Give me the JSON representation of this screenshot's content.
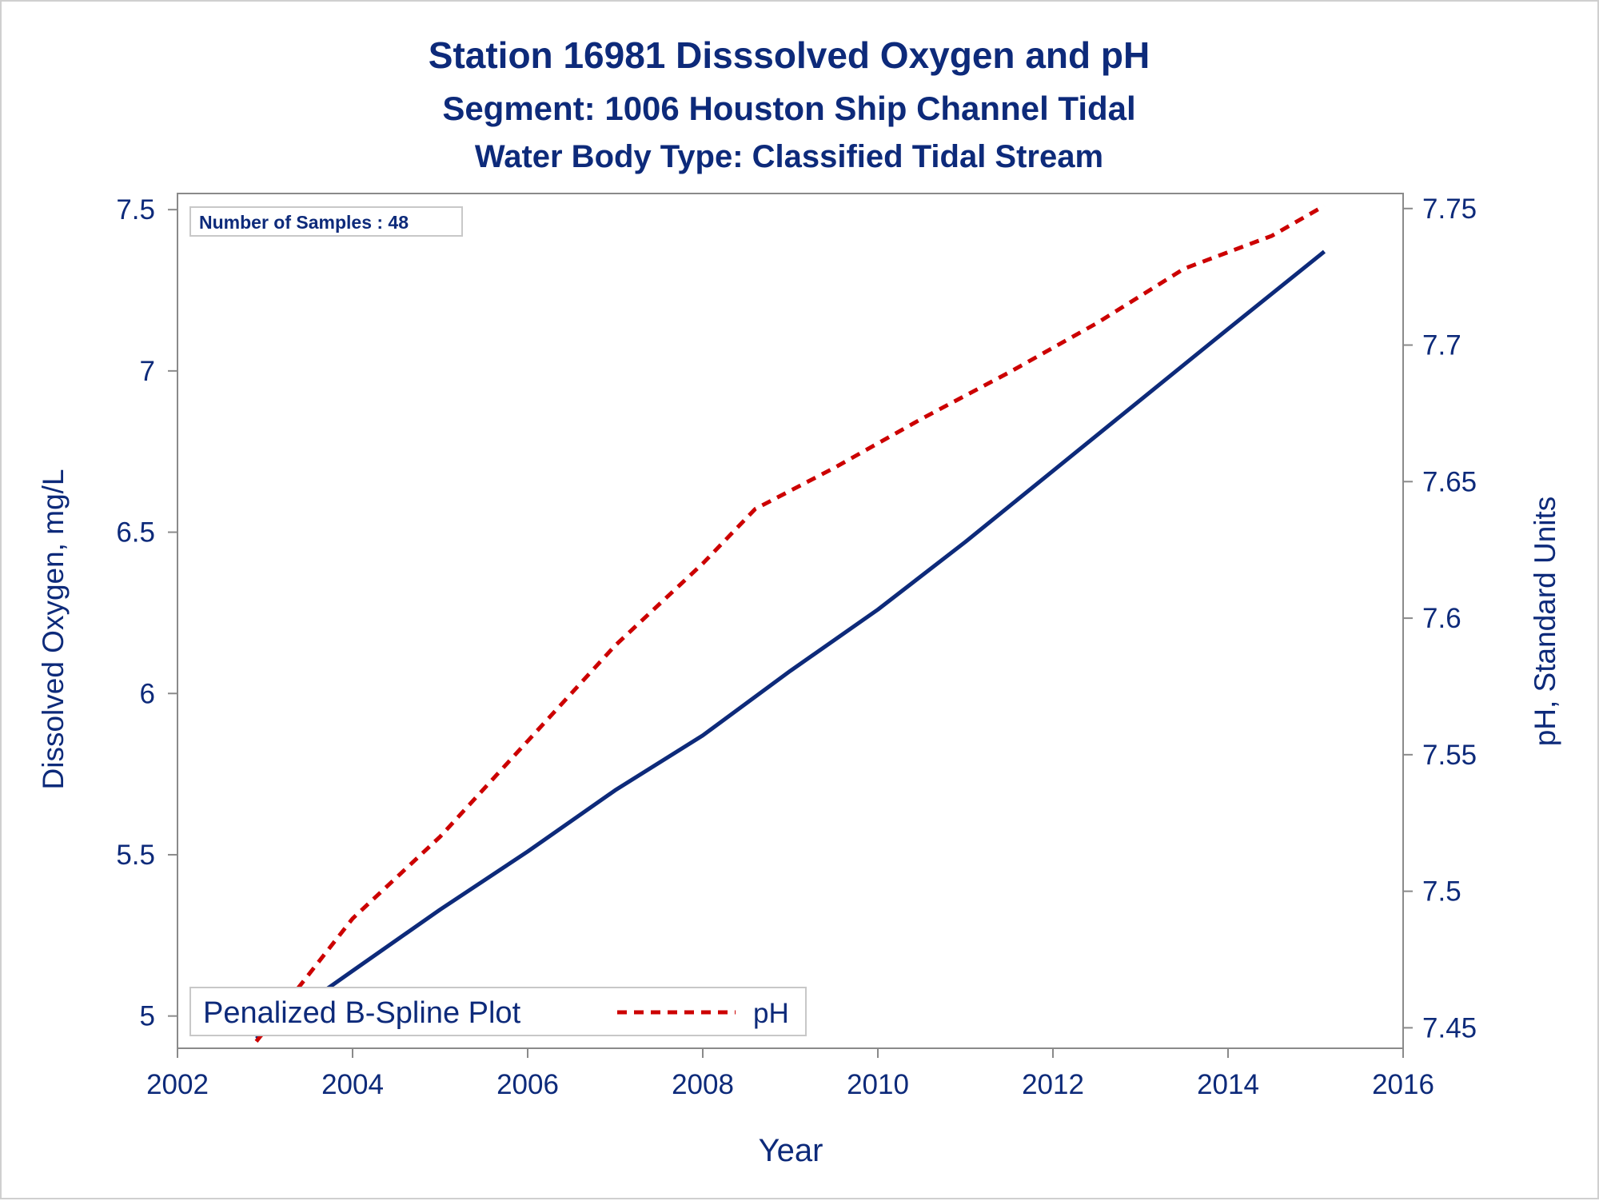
{
  "titles": {
    "line1": "Station 16981   Disssolved Oxygen and pH",
    "line2": "Segment: 1006  Houston Ship Channel Tidal",
    "line3": "Water Body Type: Classified Tidal Stream"
  },
  "inset": {
    "samples": "Number of Samples : 48"
  },
  "legend": {
    "title": "Penalized B-Spline Plot",
    "entry": "pH"
  },
  "colors": {
    "do_line": "#0d2a7a",
    "ph_line": "#cc0000",
    "text": "#0d2a7a"
  },
  "chart_data": {
    "type": "line",
    "xlabel": "Year",
    "ylabel": "Dissolved Oxygen, mg/L",
    "y2label": "pH, Standard Units",
    "xlim": [
      2002,
      2016
    ],
    "ylim": [
      4.9,
      7.55
    ],
    "y2lim": [
      7.4425,
      7.7555
    ],
    "x_ticks": [
      "2002",
      "2004",
      "2006",
      "2008",
      "2010",
      "2012",
      "2014",
      "2016"
    ],
    "y_ticks": [
      "5",
      "5.5",
      "6",
      "6.5",
      "7",
      "7.5"
    ],
    "y2_ticks": [
      "7.45",
      "7.5",
      "7.55",
      "7.6",
      "7.65",
      "7.7",
      "7.75"
    ],
    "grid": false,
    "legend_position": "bottom-left",
    "series": [
      {
        "axis": "left",
        "style": "solid",
        "x": [
          2002.9,
          2004.0,
          2005.0,
          2006.0,
          2007.0,
          2008.0,
          2009.0,
          2010.0,
          2011.0,
          2012.0,
          2013.0,
          2014.0,
          2015.1
        ],
        "values": [
          4.93,
          5.14,
          5.33,
          5.51,
          5.7,
          5.87,
          6.07,
          6.26,
          6.47,
          6.69,
          6.91,
          7.13,
          7.37
        ]
      },
      {
        "name": "pH",
        "axis": "right",
        "style": "dashed",
        "x": [
          2002.9,
          2004.0,
          2005.0,
          2006.0,
          2007.0,
          2008.0,
          2008.6,
          2009.5,
          2010.5,
          2011.5,
          2012.5,
          2013.5,
          2014.5,
          2015.1
        ],
        "values": [
          7.445,
          7.49,
          7.52,
          7.555,
          7.59,
          7.62,
          7.64,
          7.655,
          7.673,
          7.69,
          7.708,
          7.728,
          7.74,
          7.751
        ]
      }
    ]
  }
}
